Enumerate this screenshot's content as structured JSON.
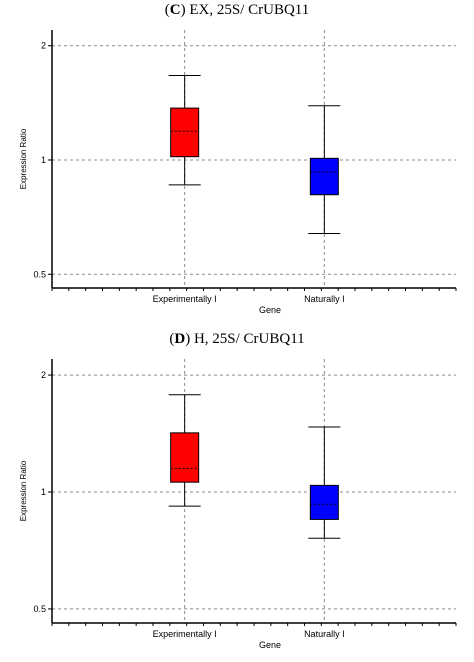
{
  "chart_data": [
    {
      "type": "box",
      "title_letter": "C",
      "title_text": " EX, 25S/ CrUBQ11",
      "xlabel": "Gene",
      "ylabel": "Expression Ratio",
      "yscale": "log",
      "ylim": [
        0.46,
        2.2
      ],
      "yticks": [
        0.5,
        1,
        2
      ],
      "ytick_labels": [
        "0.5",
        "1",
        "2"
      ],
      "grid": true,
      "categories": [
        "Experimentally I",
        "Naturally I"
      ],
      "series": [
        {
          "category": "Experimentally I",
          "color": "#ff0000",
          "whisker_low": 0.86,
          "q1": 1.02,
          "median": 1.19,
          "q3": 1.37,
          "whisker_high": 1.67
        },
        {
          "category": "Naturally I",
          "color": "#0000ff",
          "whisker_low": 0.64,
          "q1": 0.81,
          "median": 0.93,
          "q3": 1.01,
          "whisker_high": 1.39
        }
      ]
    },
    {
      "type": "box",
      "title_letter": "D",
      "title_text": " H, 25S/ CrUBQ11",
      "xlabel": "Gene",
      "ylabel": "Expression Ratio",
      "yscale": "log",
      "ylim": [
        0.46,
        2.2
      ],
      "yticks": [
        0.5,
        1,
        2
      ],
      "ytick_labels": [
        "0.5",
        "1",
        "2"
      ],
      "grid": true,
      "categories": [
        "Experimentally I",
        "Naturally I"
      ],
      "series": [
        {
          "category": "Experimentally I",
          "color": "#ff0000",
          "whisker_low": 0.92,
          "q1": 1.06,
          "median": 1.15,
          "q3": 1.42,
          "whisker_high": 1.78
        },
        {
          "category": "Naturally I",
          "color": "#0000ff",
          "whisker_low": 0.76,
          "q1": 0.85,
          "median": 0.93,
          "q3": 1.04,
          "whisker_high": 1.47
        }
      ]
    }
  ]
}
